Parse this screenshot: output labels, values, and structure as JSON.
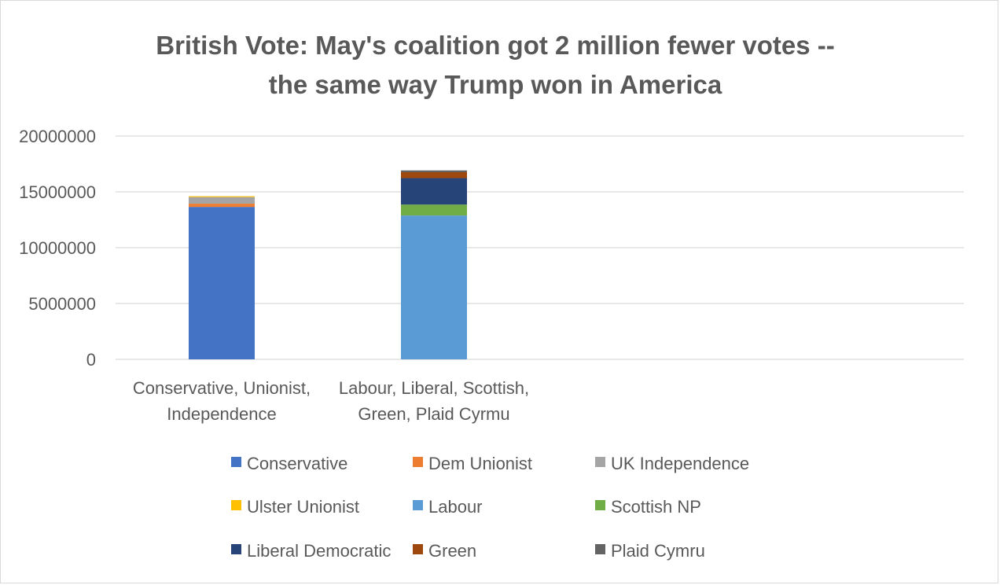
{
  "chart_data": {
    "type": "bar",
    "stacked": true,
    "title_lines": [
      "British Vote: May's coalition got 2 million fewer votes --",
      "the same way Trump won in America"
    ],
    "categories": [
      [
        "Conservative, Unionist,",
        "Independence"
      ],
      [
        "Labour, Liberal, Scottish,",
        "Green, Plaid Cyrmu"
      ]
    ],
    "ylim": [
      0,
      20000000
    ],
    "yticks": [
      "0",
      "5000000",
      "10000000",
      "15000000",
      "20000000"
    ],
    "ytick_values": [
      0,
      5000000,
      10000000,
      15000000,
      20000000
    ],
    "grid": true,
    "legend_position": "bottom",
    "series": [
      {
        "name": "Conservative",
        "color": "#4472c4",
        "values": [
          13650000,
          0
        ]
      },
      {
        "name": "Dem Unionist",
        "color": "#ed7d31",
        "values": [
          290000,
          0
        ]
      },
      {
        "name": "UK Independence",
        "color": "#a5a5a5",
        "values": [
          590000,
          0
        ]
      },
      {
        "name": "Ulster Unionist",
        "color": "#ffc000",
        "values": [
          80000,
          0
        ]
      },
      {
        "name": "Labour",
        "color": "#5b9bd5",
        "values": [
          0,
          12880000
        ]
      },
      {
        "name": "Scottish  NP",
        "color": "#70ad47",
        "values": [
          0,
          980000
        ]
      },
      {
        "name": "Liberal Democratic",
        "color": "#264478",
        "values": [
          0,
          2370000
        ]
      },
      {
        "name": "Green",
        "color": "#9e480e",
        "values": [
          0,
          530000
        ]
      },
      {
        "name": "Plaid Cymru",
        "color": "#636363",
        "values": [
          0,
          160000
        ]
      }
    ]
  }
}
